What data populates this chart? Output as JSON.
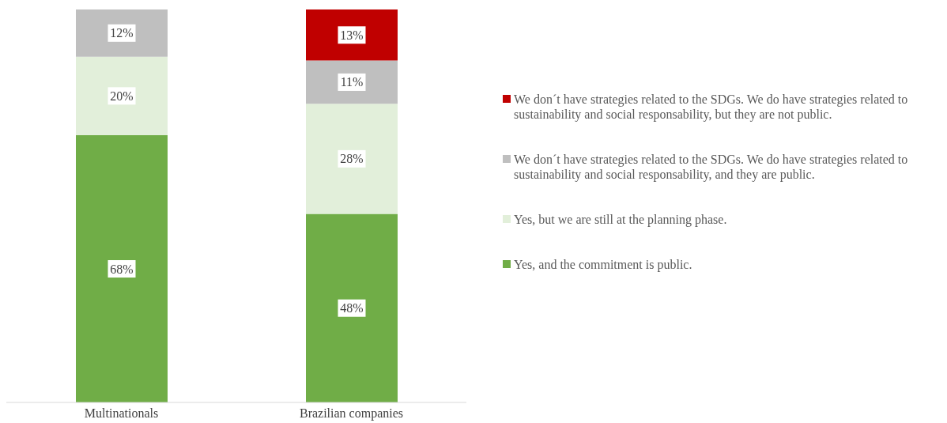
{
  "chart_data": {
    "type": "bar",
    "stacked": true,
    "categories": [
      "Multinationals",
      "Brazilian companies"
    ],
    "series": [
      {
        "name": "Yes, and the commitment is public.",
        "color": "#70ad47",
        "values": [
          68,
          48
        ],
        "value_labels": [
          "68%",
          "48%"
        ]
      },
      {
        "name": "Yes, but we are still at the planning phase.",
        "color": "#e2efda",
        "values": [
          20,
          28
        ],
        "value_labels": [
          "20%",
          "28%"
        ]
      },
      {
        "name": "We don´t have strategies related to the SDGs. We do have strategies related to sustainability and social responsability, and they are public.",
        "color": "#bfbfbf",
        "values": [
          12,
          11
        ],
        "value_labels": [
          "12%",
          "11%"
        ]
      },
      {
        "name": "We don´t have strategies related to the SDGs. We do have strategies related to sustainability and social responsability, but they are not public.",
        "color": "#c00000",
        "values": [
          null,
          13
        ],
        "value_labels": [
          null,
          "13%"
        ]
      }
    ],
    "legend": "right"
  }
}
